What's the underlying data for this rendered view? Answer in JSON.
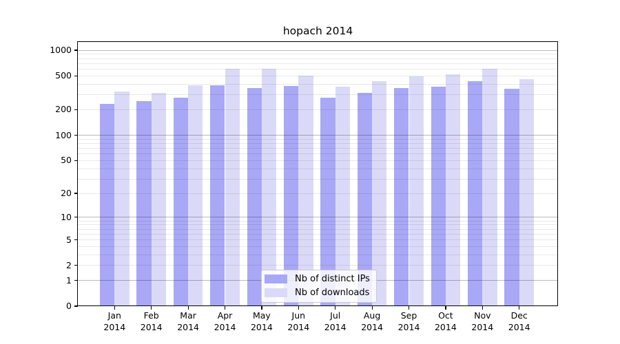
{
  "title": "hopach 2014",
  "chart_data": {
    "type": "bar",
    "title": "hopach 2014",
    "categories": [
      "Jan 2014",
      "Feb 2014",
      "Mar 2014",
      "Apr 2014",
      "May 2014",
      "Jun 2014",
      "Jul 2014",
      "Aug 2014",
      "Sep 2014",
      "Oct 2014",
      "Nov 2014",
      "Dec 2014"
    ],
    "series": [
      {
        "name": "Nb of distinct IPs",
        "color": "#a8a8f6",
        "values": [
          235,
          250,
          275,
          390,
          360,
          380,
          275,
          315,
          360,
          370,
          430,
          355
        ]
      },
      {
        "name": "Nb of downloads",
        "color": "#dadaf8",
        "values": [
          330,
          315,
          390,
          600,
          600,
          500,
          370,
          435,
          495,
          520,
          600,
          460
        ]
      }
    ],
    "xlabel": "",
    "ylabel": "",
    "yscale": "log1p",
    "yticks": [
      0,
      1,
      2,
      5,
      10,
      20,
      50,
      100,
      200,
      500,
      1000
    ],
    "ylim": [
      0,
      1250
    ],
    "grid": true,
    "grid_minor_color": "#e9e9e9",
    "grid_major_color": "#b9b9b9",
    "axis_color": "#000000",
    "legend_position": "inside-bottom-center"
  },
  "legend": {
    "items": [
      {
        "label": "Nb of distinct IPs",
        "color": "#a8a8f6"
      },
      {
        "label": "Nb of downloads",
        "color": "#dadaf8"
      }
    ]
  }
}
